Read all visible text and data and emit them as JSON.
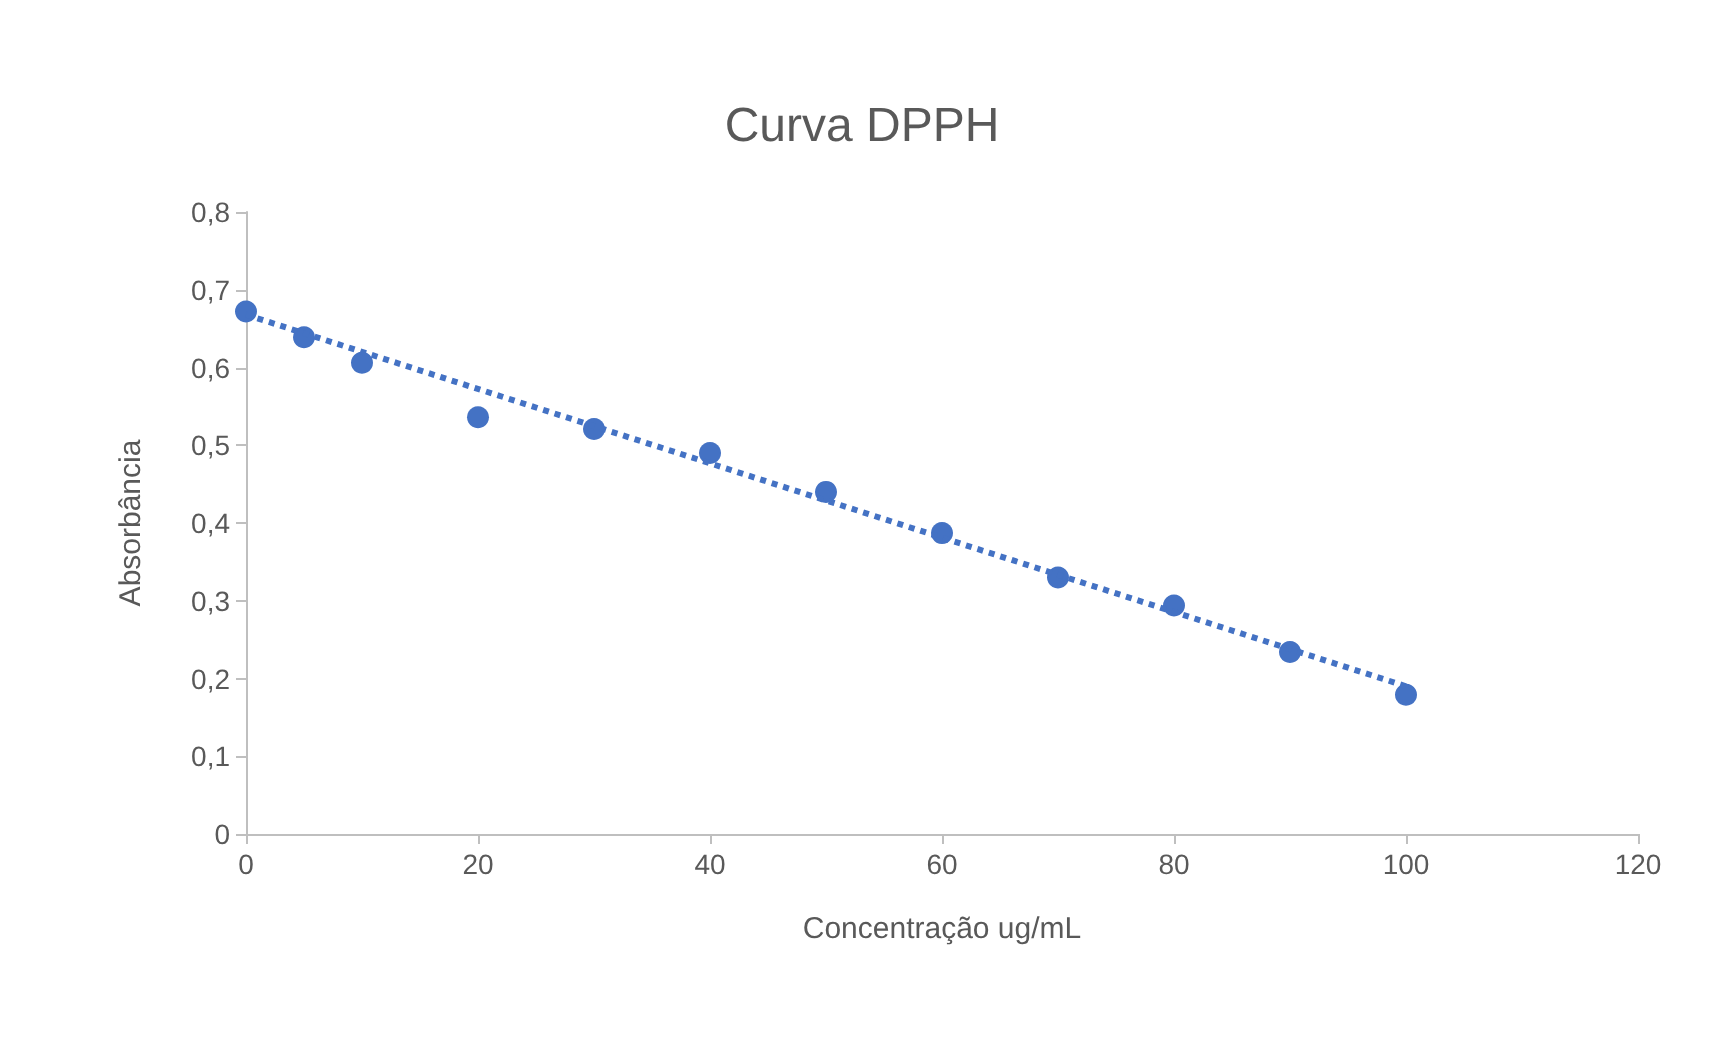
{
  "chart_data": {
    "type": "scatter",
    "title": "Curva DPPH",
    "xlabel": "Concentração ug/mL",
    "ylabel": "Absorbância",
    "marker": "circle",
    "grid": false,
    "xlim": [
      0,
      120
    ],
    "xticks": [
      0,
      20,
      40,
      60,
      80,
      100,
      120
    ],
    "ylim": [
      0,
      0.8
    ],
    "yticks": [
      0,
      {
        "value": 0.1,
        "label": "0,1"
      },
      {
        "value": 0.2,
        "label": "0,2"
      },
      {
        "value": 0.3,
        "label": "0,3"
      },
      {
        "value": 0.4,
        "label": "0,4"
      },
      {
        "value": 0.5,
        "label": "0,5"
      },
      {
        "value": 0.6,
        "label": "0,6"
      },
      {
        "value": 0.7,
        "label": "0,7"
      },
      {
        "value": 0.8,
        "label": "0,8"
      }
    ],
    "x": [
      0,
      5,
      10,
      20,
      30,
      40,
      50,
      60,
      70,
      80,
      90,
      100
    ],
    "series": [
      {
        "color": "#4472c4",
        "values": [
          0.672,
          0.639,
          0.606,
          0.536,
          0.521,
          0.49,
          0.44,
          0.387,
          0.33,
          0.294,
          0.234,
          0.179
        ]
      },
      {
        "type": "line",
        "line_style": "dotted",
        "marker": "none",
        "color": "#4472c4",
        "x": [
          0,
          100
        ],
        "values": [
          0.668,
          0.19
        ]
      }
    ]
  }
}
